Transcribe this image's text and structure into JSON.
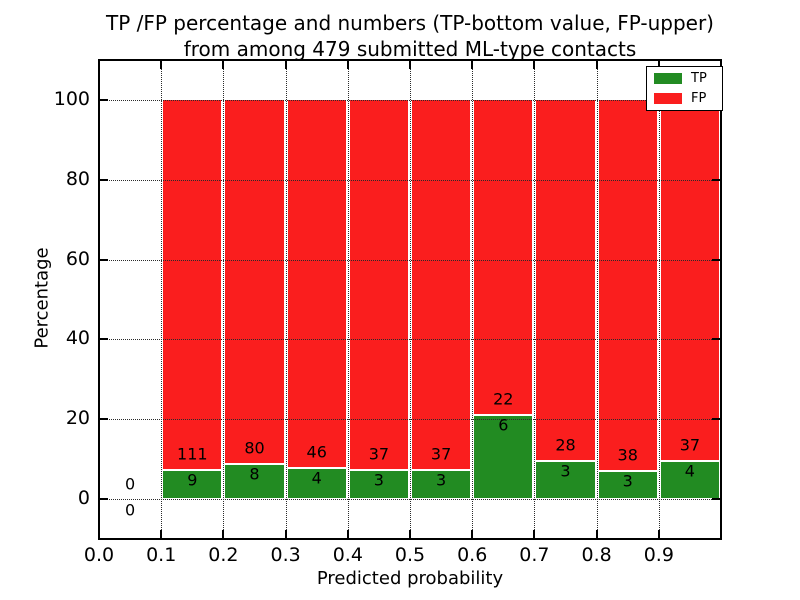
{
  "chart_data": {
    "type": "bar",
    "stacked": true,
    "normalized_to_percent": true,
    "title": "TP /FP percentage and numbers (TP-bottom value, FP-upper)\nfrom among 479 submitted ML-type contacts",
    "title_lines": [
      "TP /FP percentage and numbers (TP-bottom value, FP-upper)",
      "from among 479 submitted ML-type contacts"
    ],
    "total_submitted_contacts": 479,
    "xlabel": "Predicted probability",
    "ylabel": "Percentage",
    "bin_edges": [
      0.0,
      0.1,
      0.2,
      0.3,
      0.4,
      0.5,
      0.6,
      0.7,
      0.8,
      0.9,
      1.0
    ],
    "series": [
      {
        "name": "TP",
        "color": "#228b22",
        "counts": [
          0,
          9,
          8,
          4,
          3,
          3,
          6,
          3,
          3,
          4
        ]
      },
      {
        "name": "FP",
        "color": "#fa1e1e",
        "counts": [
          0,
          111,
          80,
          46,
          37,
          37,
          22,
          28,
          38,
          37
        ]
      }
    ],
    "tp_percent_per_bin": [
      0,
      7.5,
      9.09,
      8.0,
      7.5,
      7.5,
      21.43,
      9.68,
      7.32,
      9.76
    ],
    "xticks": [
      0.0,
      0.1,
      0.2,
      0.3,
      0.4,
      0.5,
      0.6,
      0.7,
      0.8,
      0.9
    ],
    "xtick_labels": [
      "0.0",
      "0.1",
      "0.2",
      "0.3",
      "0.4",
      "0.5",
      "0.6",
      "0.7",
      "0.8",
      "0.9"
    ],
    "yticks": [
      0,
      20,
      40,
      60,
      80,
      100
    ],
    "ytick_labels": [
      "0",
      "20",
      "40",
      "60",
      "80",
      "100"
    ],
    "xlim": [
      0.0,
      1.0
    ],
    "ylim": [
      -10,
      110
    ],
    "grid": true,
    "grid_style": "dotted",
    "legend_position": "upper right",
    "bar_edge_color": "#ffffff"
  }
}
